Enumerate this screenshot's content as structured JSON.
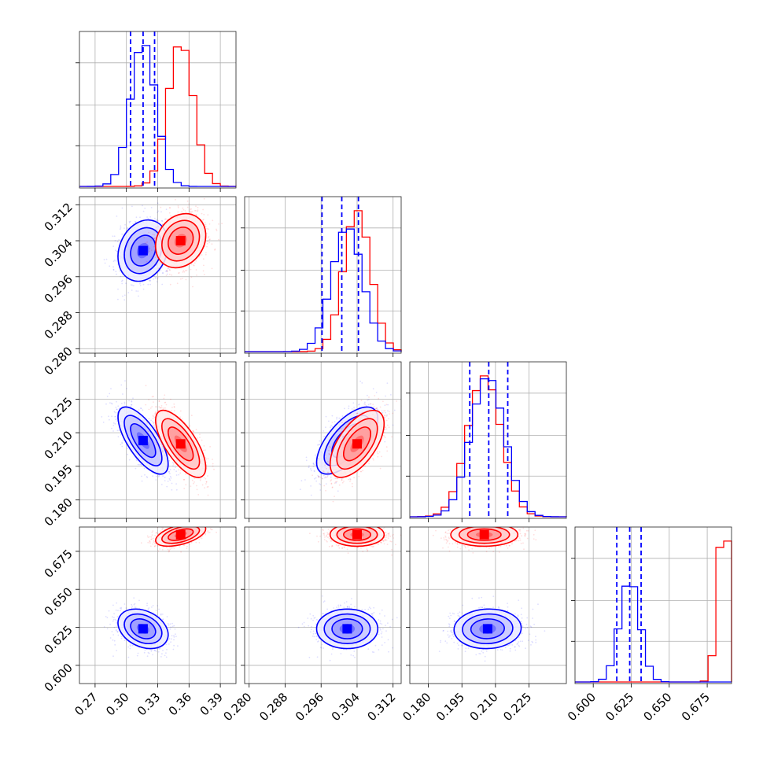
{
  "chart_data": {
    "type": "corner",
    "parameters": [
      "p1",
      "p2",
      "p3",
      "p4"
    ],
    "axes": {
      "p1": {
        "range": [
          0.255,
          0.405
        ],
        "ticks": [
          0.27,
          0.3,
          0.33,
          0.36,
          0.39
        ],
        "tick_labels": [
          "0.27",
          "0.30",
          "0.33",
          "0.36",
          "0.39"
        ]
      },
      "p2": {
        "range": [
          0.279,
          0.3138
        ],
        "ticks": [
          0.28,
          0.288,
          0.296,
          0.304,
          0.312
        ],
        "tick_labels": [
          "0.280",
          "0.288",
          "0.296",
          "0.304",
          "0.312"
        ]
      },
      "p3": {
        "range": [
          0.1717,
          0.2417
        ],
        "ticks": [
          0.18,
          0.195,
          0.21,
          0.225
        ],
        "tick_labels": [
          "0.180",
          "0.195",
          "0.210",
          "0.225"
        ]
      },
      "p4": {
        "range": [
          0.588,
          0.691
        ],
        "ticks": [
          0.6,
          0.625,
          0.65,
          0.675
        ],
        "tick_labels": [
          "0.600",
          "0.625",
          "0.650",
          "0.675"
        ]
      }
    },
    "grid": true,
    "series": [
      {
        "color": "#0000ff",
        "mean": [
          0.316,
          0.3018,
          0.2065,
          0.624
        ],
        "sd": [
          0.012,
          0.0034,
          0.0075,
          0.0065
        ],
        "corr": [
          [
            0,
            1,
            0.2
          ],
          [
            0,
            2,
            -0.7
          ],
          [
            1,
            2,
            0.65
          ],
          [
            0,
            3,
            -0.3
          ],
          [
            1,
            3,
            0.0
          ],
          [
            2,
            3,
            0.05
          ]
        ],
        "quantiles_16_50_84": {
          "p1": [
            0.304,
            0.316,
            0.327
          ],
          "p2": [
            0.2962,
            0.3006,
            0.3043
          ],
          "p3": [
            0.1985,
            0.207,
            0.2155
          ],
          "p4": [
            0.6155,
            0.624,
            0.6315
          ]
        }
      },
      {
        "color": "#ff0000",
        "mean": [
          0.352,
          0.304,
          0.205,
          0.686
        ],
        "sd": [
          0.012,
          0.003,
          0.0075,
          0.0038
        ],
        "corr": [
          [
            0,
            1,
            0.2
          ],
          [
            0,
            2,
            -0.7
          ],
          [
            1,
            2,
            0.6
          ],
          [
            0,
            3,
            0.5
          ],
          [
            1,
            3,
            0.0
          ],
          [
            2,
            3,
            0.0
          ]
        ]
      }
    ]
  }
}
